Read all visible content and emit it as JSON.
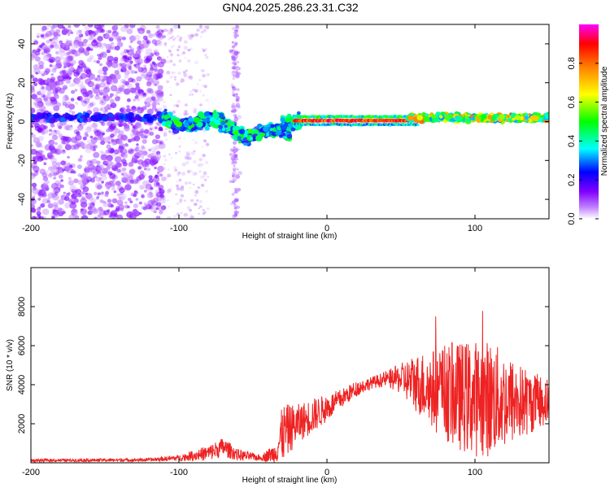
{
  "title": "GN04.2025.286.23.31.C32",
  "chart_data": [
    {
      "type": "heatmap",
      "name": "spectrogram",
      "xlabel": "Height of straight line (km)",
      "ylabel": "Frequency (Hz)",
      "xlim": [
        -200,
        150
      ],
      "ylim": [
        -50,
        50
      ],
      "xticks": [
        -200,
        -100,
        0,
        100
      ],
      "yticks": [
        -40,
        -20,
        0,
        20,
        40
      ],
      "colorbar": {
        "label": "Normalized spectral amplitude",
        "range": [
          0,
          1
        ],
        "ticks": [
          0.0,
          0.2,
          0.4,
          0.6,
          0.8
        ]
      },
      "features": [
        {
          "region": "scattered noise",
          "x_range": [
            -200,
            -110
          ],
          "y_range": [
            -50,
            50
          ],
          "amplitude": 0.1
        },
        {
          "region": "carrier band",
          "x_range": [
            -200,
            -110
          ],
          "center_hz": 2,
          "amplitude": 0.2
        },
        {
          "region": "turbulent band",
          "x_range": [
            -110,
            -25
          ],
          "center_hz_start": 2,
          "center_hz_end": -8,
          "amplitude": 0.4
        },
        {
          "region": "strong carrier",
          "x_range": [
            -25,
            60
          ],
          "center_hz": 0,
          "amplitude": 0.95
        },
        {
          "region": "fluctuating carrier",
          "x_range": [
            60,
            150
          ],
          "center_hz": 2,
          "amplitude": 0.6
        }
      ]
    },
    {
      "type": "line",
      "name": "snr",
      "xlabel": "Height of straight line (km)",
      "ylabel": "SNR (10 * v/v)",
      "xlim": [
        -200,
        150
      ],
      "ylim": [
        0,
        10000
      ],
      "xticks": [
        -200,
        -100,
        0,
        100
      ],
      "yticks": [
        2000,
        4000,
        6000,
        8000
      ],
      "color": "#ee2222",
      "envelope": {
        "x": [
          -200,
          -120,
          -100,
          -80,
          -70,
          -60,
          -45,
          -35,
          -30,
          -20,
          -10,
          0,
          10,
          20,
          30,
          40,
          50,
          60,
          70,
          80,
          90,
          100,
          110,
          120,
          130,
          140,
          150
        ],
        "base": [
          120,
          150,
          250,
          500,
          800,
          400,
          250,
          500,
          1500,
          2000,
          2400,
          2800,
          3300,
          3800,
          4100,
          4300,
          4300,
          4100,
          3800,
          3600,
          3400,
          3300,
          3300,
          3200,
          3100,
          3100,
          3200
        ],
        "spread": [
          80,
          80,
          150,
          400,
          500,
          300,
          150,
          500,
          1500,
          1000,
          900,
          700,
          500,
          400,
          300,
          400,
          800,
          1500,
          2000,
          2500,
          2800,
          3000,
          3000,
          2500,
          2000,
          1500,
          1200
        ]
      }
    }
  ]
}
